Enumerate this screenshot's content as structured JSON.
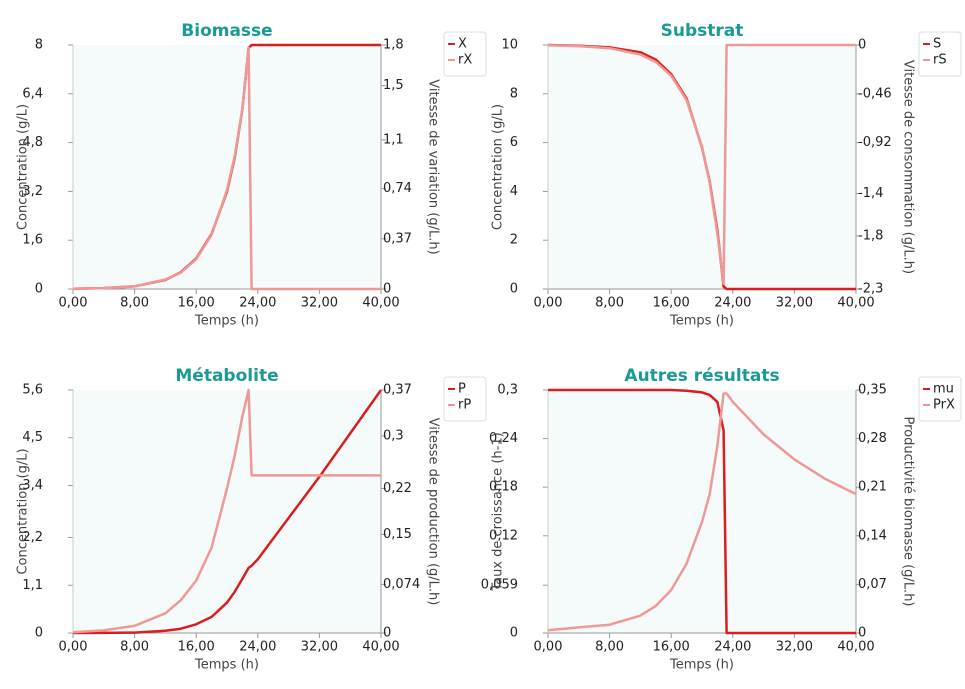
{
  "chart_data": [
    {
      "type": "line",
      "title": "Biomasse",
      "xlabel": "Temps (h)",
      "ylabel": "Concentration (g/L)",
      "y2label": "Vitesse de variation (g/L.h)",
      "x": [
        0,
        4,
        8,
        12,
        14,
        16,
        18,
        20,
        21,
        22,
        22.8,
        23.2,
        24,
        28,
        32,
        36,
        40
      ],
      "xlim": [
        0,
        40
      ],
      "xticks": [
        {
          "value": 0,
          "label": "0,00"
        },
        {
          "value": 8,
          "label": "8,00"
        },
        {
          "value": 16,
          "label": "16,00"
        },
        {
          "value": 24,
          "label": "24,00"
        },
        {
          "value": 32,
          "label": "32,00"
        },
        {
          "value": 40,
          "label": "40,00"
        }
      ],
      "ylim": [
        0,
        8
      ],
      "yticks": [
        0,
        {
          "value": 1.6,
          "label": "1,6"
        },
        {
          "value": 3.2,
          "label": "3,2"
        },
        {
          "value": 4.8,
          "label": "4,8"
        },
        {
          "value": 6.4,
          "label": "6,4"
        },
        8
      ],
      "y2lim": [
        0,
        1.8
      ],
      "y2ticks": [
        0,
        {
          "value": 0.37,
          "label": "0,37"
        },
        {
          "value": 0.74,
          "label": "0,74"
        },
        {
          "value": 1.1,
          "label": "1,1"
        },
        {
          "value": 1.5,
          "label": "1,5"
        },
        {
          "value": 1.8,
          "label": "1,8"
        }
      ],
      "series": [
        {
          "name": "X",
          "color": "#d81e1e",
          "values": [
            0.01,
            0.03,
            0.09,
            0.3,
            0.55,
            1.0,
            1.8,
            3.2,
            4.3,
            5.9,
            7.9,
            8,
            8,
            8,
            8,
            8,
            8
          ]
        },
        {
          "name": "rX",
          "color": "#ef9898",
          "axis": "y2",
          "values": [
            0.002,
            0.007,
            0.02,
            0.07,
            0.12,
            0.22,
            0.4,
            0.73,
            0.98,
            1.33,
            1.78,
            0,
            0,
            0,
            0,
            0,
            0
          ]
        }
      ]
    },
    {
      "type": "line",
      "title": "Substrat",
      "xlabel": "Temps (h)",
      "ylabel": "Concentration (g/L)",
      "y2label": "Vitesse de consommation (g/L.h)",
      "x": [
        0,
        4,
        8,
        12,
        14,
        16,
        18,
        20,
        21,
        22,
        22.8,
        23.2,
        24,
        28,
        32,
        36,
        40
      ],
      "xlim": [
        0,
        40
      ],
      "xticks": [
        {
          "value": 0,
          "label": "0,00"
        },
        {
          "value": 8,
          "label": "8,00"
        },
        {
          "value": 16,
          "label": "16,00"
        },
        {
          "value": 24,
          "label": "24,00"
        },
        {
          "value": 32,
          "label": "32,00"
        },
        {
          "value": 40,
          "label": "40,00"
        }
      ],
      "ylim": [
        0,
        10
      ],
      "yticks": [
        0,
        2,
        4,
        6,
        8,
        10
      ],
      "y2lim": [
        -2.3,
        0
      ],
      "y2ticks": [
        {
          "value": -2.3,
          "label": "-2,3"
        },
        {
          "value": -1.8,
          "label": "-1,8"
        },
        {
          "value": -1.4,
          "label": "-1,4"
        },
        {
          "value": -0.92,
          "label": "-0,92"
        },
        {
          "value": -0.46,
          "label": "-0,46"
        },
        0
      ],
      "series": [
        {
          "name": "S",
          "color": "#d81e1e",
          "values": [
            10,
            9.97,
            9.9,
            9.7,
            9.4,
            8.8,
            7.8,
            5.8,
            4.4,
            2.4,
            0.1,
            0,
            0,
            0,
            0,
            0,
            0
          ]
        },
        {
          "name": "rS",
          "color": "#ef9898",
          "axis": "y2",
          "values": [
            -0.003,
            -0.01,
            -0.03,
            -0.09,
            -0.16,
            -0.29,
            -0.52,
            -0.96,
            -1.3,
            -1.78,
            -2.25,
            0,
            0,
            0,
            0,
            0,
            0
          ]
        }
      ]
    },
    {
      "type": "line",
      "title": "Métabolite",
      "xlabel": "Temps (h)",
      "ylabel": "Concentration (g/L)",
      "y2label": "Vitesse de production (g/L.h)",
      "x": [
        0,
        4,
        8,
        12,
        14,
        16,
        18,
        20,
        21,
        22,
        22.8,
        23.2,
        24,
        28,
        32,
        36,
        40
      ],
      "xlim": [
        0,
        40
      ],
      "xticks": [
        {
          "value": 0,
          "label": "0,00"
        },
        {
          "value": 8,
          "label": "8,00"
        },
        {
          "value": 16,
          "label": "16,00"
        },
        {
          "value": 24,
          "label": "24,00"
        },
        {
          "value": 32,
          "label": "32,00"
        },
        {
          "value": 40,
          "label": "40,00"
        }
      ],
      "ylim": [
        0,
        5.6
      ],
      "yticks": [
        0,
        {
          "value": 1.1,
          "label": "1,1"
        },
        {
          "value": 2.2,
          "label": "2,2"
        },
        {
          "value": 3.4,
          "label": "3,4"
        },
        {
          "value": 4.5,
          "label": "4,5"
        },
        {
          "value": 5.6,
          "label": "5,6"
        }
      ],
      "y2lim": [
        0,
        0.37
      ],
      "y2ticks": [
        0,
        {
          "value": 0.074,
          "label": "0,074"
        },
        {
          "value": 0.15,
          "label": "0,15"
        },
        {
          "value": 0.22,
          "label": "0,22"
        },
        {
          "value": 0.3,
          "label": "0,3"
        },
        {
          "value": 0.37,
          "label": "0,37"
        }
      ],
      "series": [
        {
          "name": "P",
          "color": "#d81e1e",
          "values": [
            0,
            0.003,
            0.01,
            0.05,
            0.1,
            0.2,
            0.37,
            0.7,
            0.95,
            1.25,
            1.5,
            1.55,
            1.7,
            2.65,
            3.6,
            4.6,
            5.6
          ]
        },
        {
          "name": "rP",
          "color": "#ef9898",
          "axis": "y2",
          "values": [
            0.001,
            0.004,
            0.011,
            0.03,
            0.05,
            0.08,
            0.13,
            0.22,
            0.27,
            0.33,
            0.37,
            0.24,
            0.24,
            0.24,
            0.24,
            0.24,
            0.24
          ]
        }
      ]
    },
    {
      "type": "line",
      "title": "Autres résultats",
      "xlabel": "Temps (h)",
      "ylabel": "Taux de croissance (h-1)",
      "y2label": "Productivité biomasse (g/L.h)",
      "x": [
        0,
        4,
        8,
        12,
        14,
        16,
        18,
        20,
        21,
        22,
        22.8,
        23.2,
        24,
        28,
        32,
        36,
        40
      ],
      "xlim": [
        0,
        40
      ],
      "xticks": [
        {
          "value": 0,
          "label": "0,00"
        },
        {
          "value": 8,
          "label": "8,00"
        },
        {
          "value": 16,
          "label": "16,00"
        },
        {
          "value": 24,
          "label": "24,00"
        },
        {
          "value": 32,
          "label": "32,00"
        },
        {
          "value": 40,
          "label": "40,00"
        }
      ],
      "ylim": [
        0,
        0.3
      ],
      "yticks": [
        0,
        {
          "value": 0.059,
          "label": "0,059"
        },
        {
          "value": 0.12,
          "label": "0,12"
        },
        {
          "value": 0.18,
          "label": "0,18"
        },
        {
          "value": 0.24,
          "label": "0,24"
        },
        {
          "value": 0.3,
          "label": "0,3"
        }
      ],
      "y2lim": [
        0,
        0.35
      ],
      "y2ticks": [
        0,
        {
          "value": 0.07,
          "label": "0,07"
        },
        {
          "value": 0.14,
          "label": "0,14"
        },
        {
          "value": 0.21,
          "label": "0,21"
        },
        {
          "value": 0.28,
          "label": "0,28"
        },
        {
          "value": 0.35,
          "label": "0,35"
        }
      ],
      "series": [
        {
          "name": "mu",
          "color": "#d81e1e",
          "values": [
            0.3,
            0.3,
            0.3,
            0.3,
            0.3,
            0.3,
            0.299,
            0.297,
            0.294,
            0.285,
            0.25,
            0,
            0,
            0,
            0,
            0,
            0
          ]
        },
        {
          "name": "PrX",
          "color": "#ef9898",
          "axis": "y2",
          "values": [
            0.004,
            0.008,
            0.012,
            0.025,
            0.039,
            0.062,
            0.1,
            0.16,
            0.2,
            0.27,
            0.345,
            0.345,
            0.333,
            0.286,
            0.25,
            0.222,
            0.2
          ]
        }
      ]
    }
  ]
}
